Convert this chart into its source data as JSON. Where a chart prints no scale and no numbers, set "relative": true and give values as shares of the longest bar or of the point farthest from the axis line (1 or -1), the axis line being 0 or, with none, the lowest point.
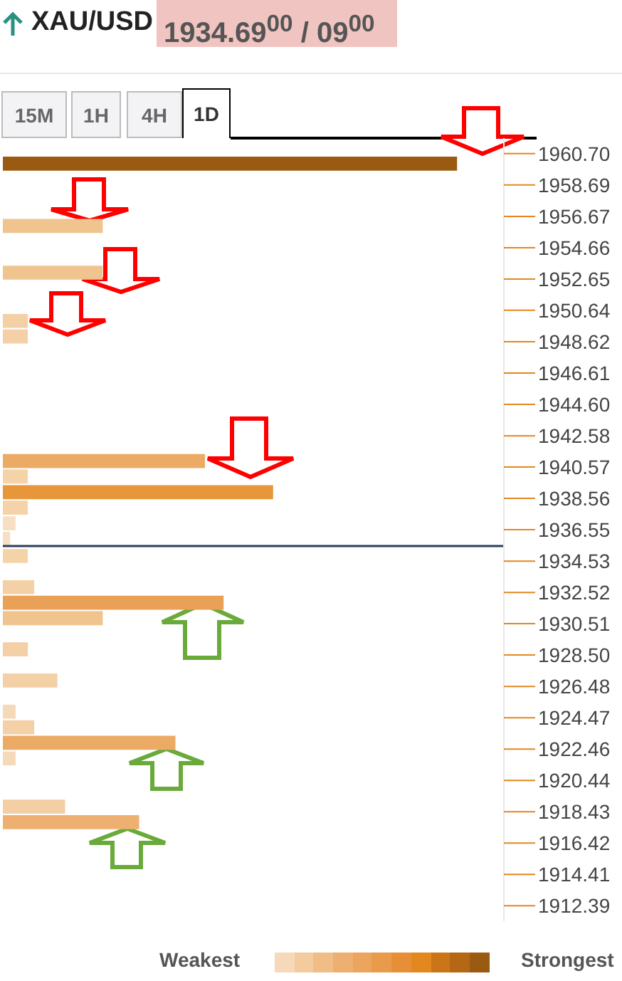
{
  "chart_data": {
    "type": "bar",
    "orientation": "horizontal",
    "relative": true,
    "title": "XAU/USD",
    "subtitle": "1934.69$^{00}$ / 09$^{00}$",
    "x": [
      1960.1,
      1956.1,
      1953.1,
      1950.0,
      1949.0,
      1941.0,
      1940.0,
      1939.0,
      1938.0,
      1937.0,
      1936.0,
      1934.9,
      1932.9,
      1931.9,
      1930.9,
      1928.9,
      1926.9,
      1924.9,
      1923.9,
      1922.9,
      1921.9,
      1918.8,
      1917.8
    ],
    "values": [
      1.0,
      0.22,
      0.22,
      0.055,
      0.055,
      0.445,
      0.055,
      0.595,
      0.055,
      0.028,
      0.016,
      0.055,
      0.069,
      0.486,
      0.22,
      0.055,
      0.12,
      0.028,
      0.069,
      0.38,
      0.028,
      0.137,
      0.3
    ],
    "colors": [
      "#9b5a12",
      "#f0c48f",
      "#f0c48f",
      "#f3d0a6",
      "#f3d0a6",
      "#ecab64",
      "#f5d3a8",
      "#e8963a",
      "#f5d3a8",
      "#f7dfc3",
      "#f7dfc3",
      "#f5d3a8",
      "#f3d0a6",
      "#e9a158",
      "#f0c48f",
      "#f3d0a6",
      "#f3d0a6",
      "#f5d9b8",
      "#f3d0a6",
      "#ecab64",
      "#f5d9b8",
      "#f3cfa3",
      "#edb070"
    ],
    "ylim": [
      1911.4,
      1961.7
    ],
    "yticks": [
      {
        "value": 1960.7,
        "label": "1960.70"
      },
      1958.69,
      1956.67,
      1954.66,
      1952.65,
      1950.64,
      1948.62,
      1946.61,
      {
        "value": 1944.6,
        "label": "1944.60"
      },
      1942.58,
      1940.57,
      1938.56,
      1936.55,
      1934.53,
      1932.52,
      1930.51,
      {
        "value": 1928.5,
        "label": "1928.50"
      },
      1926.48,
      1924.47,
      1922.46,
      1920.44,
      1918.43,
      1916.42,
      1914.41,
      1912.39
    ],
    "ref_lines": [
      {
        "axis": "y",
        "value": 1935.5,
        "color": "#2c3e5c"
      }
    ],
    "annotations": [
      "15M",
      "1H",
      "4H",
      "1D",
      "Weakest",
      "Strongest"
    ]
  }
}
